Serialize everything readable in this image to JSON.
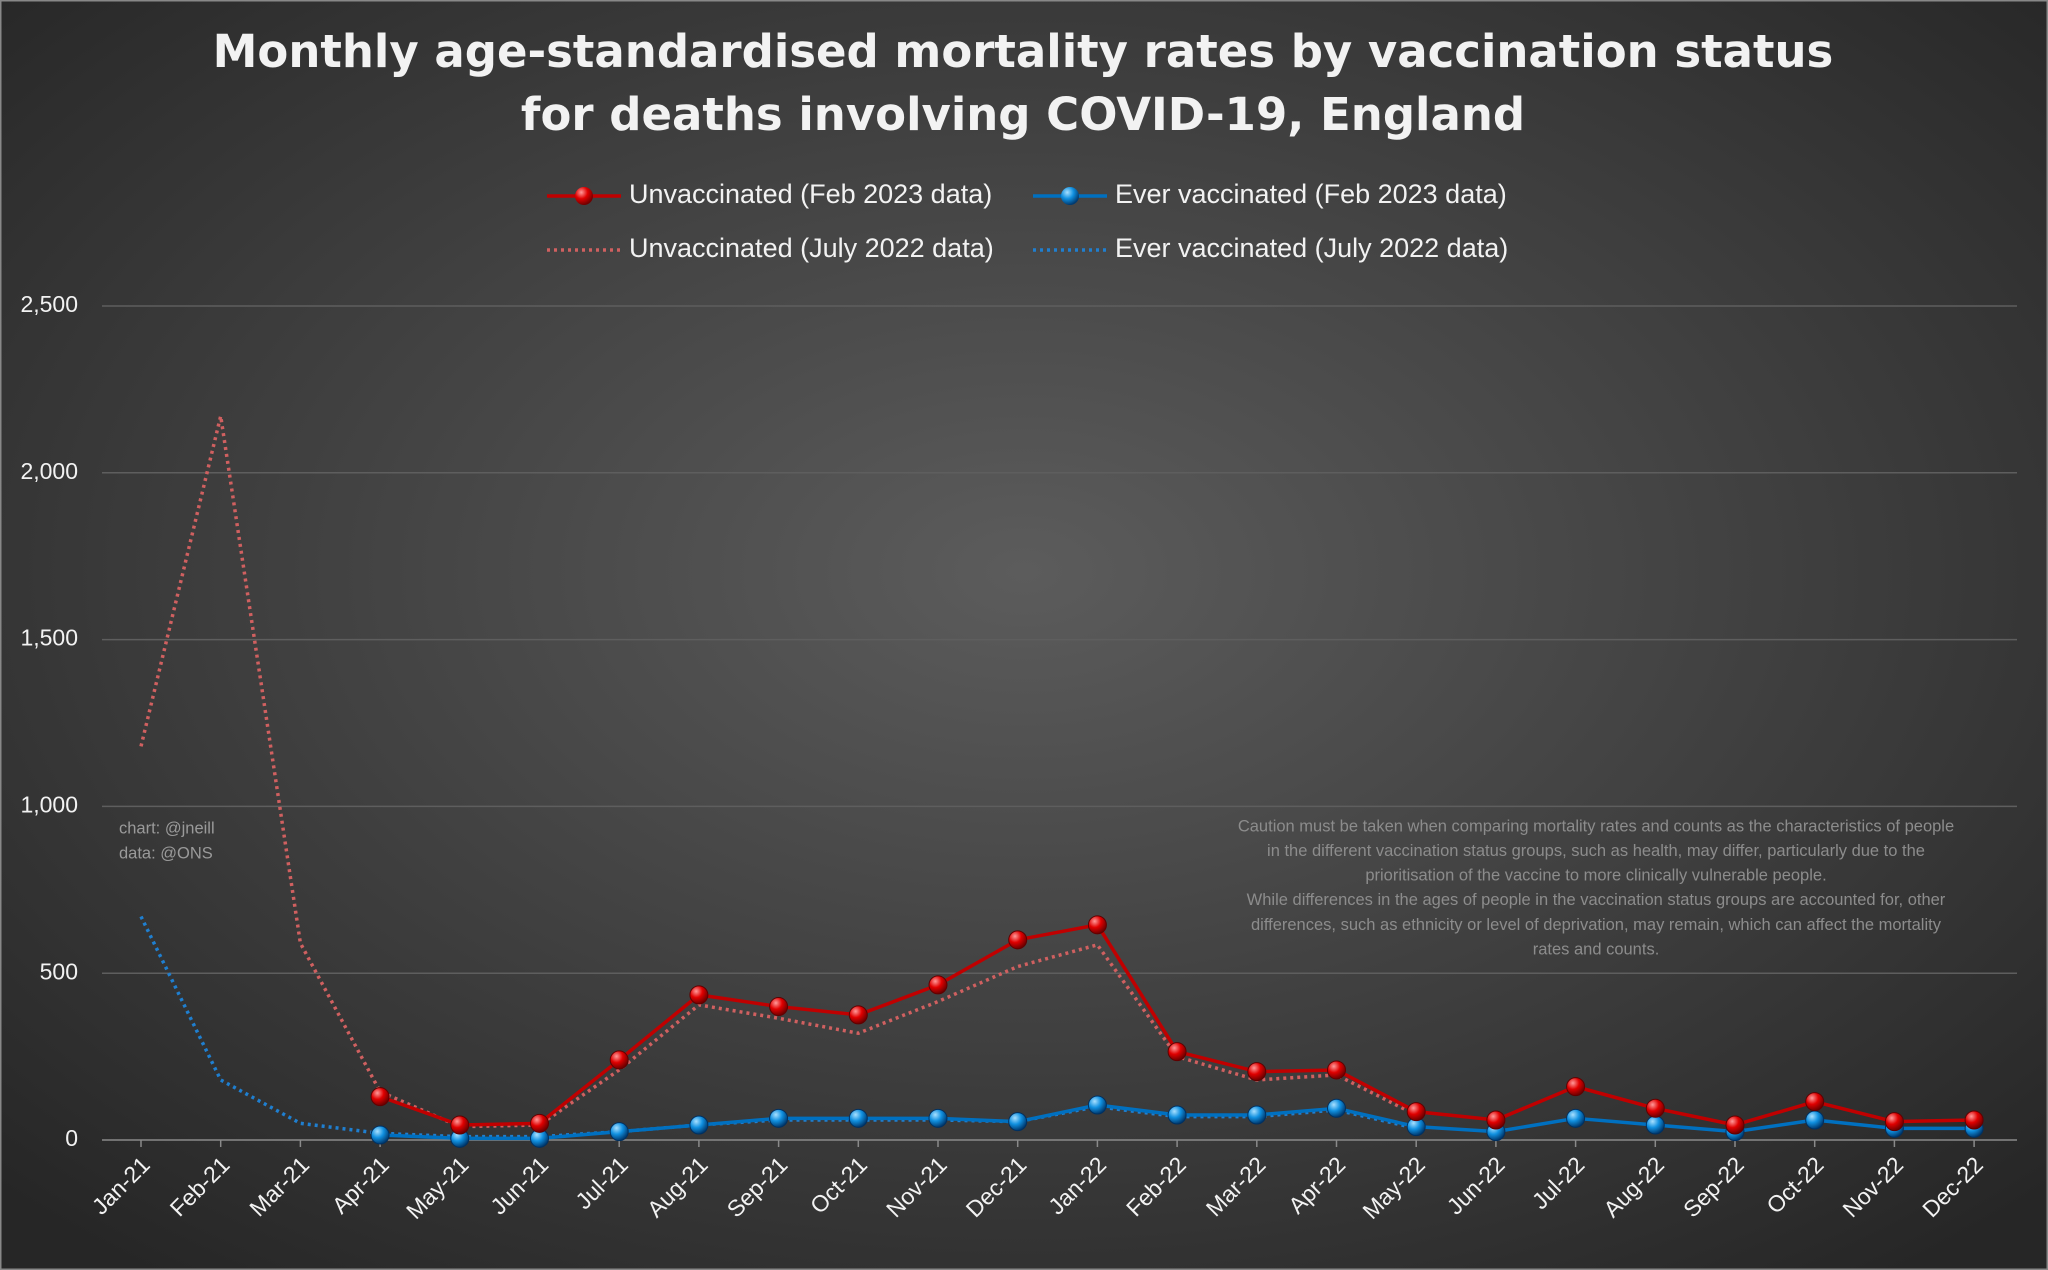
{
  "chart_data": {
    "type": "line",
    "title": [
      "Monthly age-standardised mortality rates by vaccination status",
      "for deaths involving COVID-19, England"
    ],
    "categories": [
      "Jan-21",
      "Feb-21",
      "Mar-21",
      "Apr-21",
      "May-21",
      "Jun-21",
      "Jul-21",
      "Aug-21",
      "Sep-21",
      "Oct-21",
      "Nov-21",
      "Dec-21",
      "Jan-22",
      "Feb-22",
      "Mar-22",
      "Apr-22",
      "May-22",
      "Jun-22",
      "Jul-22",
      "Aug-22",
      "Sep-22",
      "Oct-22",
      "Nov-22",
      "Dec-22"
    ],
    "series": [
      {
        "name": "Unvaccinated (Feb 2023 data)",
        "color": "#c00000",
        "style": "solid",
        "markers": true,
        "values": [
          null,
          null,
          null,
          130,
          45,
          50,
          240,
          435,
          400,
          375,
          465,
          600,
          645,
          265,
          205,
          210,
          85,
          60,
          160,
          95,
          45,
          115,
          55,
          60
        ]
      },
      {
        "name": "Ever vaccinated (Feb 2023 data)",
        "color": "#0070c0",
        "style": "solid",
        "markers": true,
        "values": [
          null,
          null,
          null,
          15,
          5,
          5,
          25,
          45,
          65,
          65,
          65,
          55,
          105,
          75,
          75,
          95,
          40,
          25,
          65,
          45,
          25,
          60,
          35,
          35
        ]
      },
      {
        "name": "Unvaccinated (July 2022 data)",
        "color": "#d06060",
        "style": "dotted",
        "markers": false,
        "values": [
          1180,
          2170,
          590,
          145,
          40,
          45,
          210,
          405,
          365,
          320,
          415,
          520,
          585,
          250,
          180,
          195,
          75,
          null,
          null,
          null,
          null,
          null,
          null,
          null
        ]
      },
      {
        "name": "Ever vaccinated (July 2022 data)",
        "color": "#1f7fd0",
        "style": "dotted",
        "markers": false,
        "values": [
          670,
          180,
          50,
          20,
          10,
          10,
          25,
          45,
          60,
          60,
          60,
          55,
          100,
          70,
          70,
          90,
          35,
          null,
          null,
          null,
          null,
          null,
          null,
          null
        ]
      }
    ],
    "ylim": [
      0,
      2500
    ],
    "yticks": [
      0,
      500,
      {
        "value": 1000,
        "label": "1,000"
      },
      {
        "value": 1500,
        "label": "1,500"
      },
      {
        "value": 2000,
        "label": "2,000"
      },
      {
        "value": 2500,
        "label": "2,500"
      }
    ],
    "grid": true,
    "credits": [
      "chart: @jneill",
      "data: @ONS"
    ],
    "note": [
      "Caution must be taken when comparing mortality rates and counts as the characteristics of people",
      "in the different vaccination status groups, such as health, may differ, particularly due to the",
      "prioritisation of the vaccine to more clinically vulnerable people.",
      "While differences in the ages of people in the vaccination status groups are accounted for, other",
      "differences, such as ethnicity or level of deprivation, may remain, which can affect the mortality",
      "rates and counts."
    ]
  }
}
